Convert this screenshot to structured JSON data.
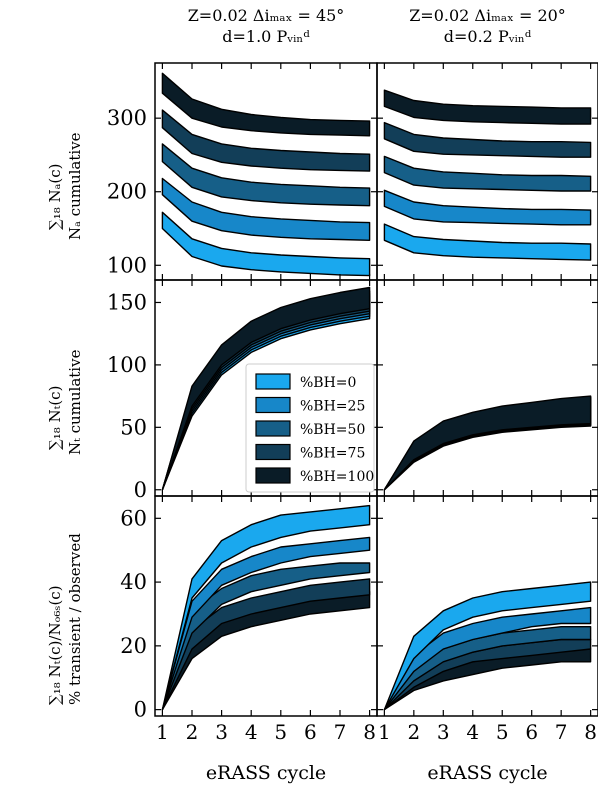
{
  "columns": [
    {
      "title_line1": "Z=0.02 Δiₘₐₓ = 45°",
      "title_line2": "d=1.0 Pᵥᵢₙᵈ"
    },
    {
      "title_line1": "Z=0.02 Δiₘₐₓ = 20°",
      "title_line2": "d=0.2 Pᵥᵢₙᵈ"
    }
  ],
  "xlabel": "eRASS cycle",
  "rows": [
    {
      "ylabel_sum": "∑₁₈ Nₐ(c)",
      "ylabel_text": "Nₐ cumulative"
    },
    {
      "ylabel_sum": "∑₁₈ Nₜ(c)",
      "ylabel_text": "Nₜ cumulative"
    },
    {
      "ylabel_sum": "∑₁₈ Nₜ(c)/Nₒ₆ₛ(c)",
      "ylabel_text": "% transient / observed"
    }
  ],
  "legend": [
    {
      "label": "%BH=0",
      "color": "#1aa8ee"
    },
    {
      "label": "%BH=25",
      "color": "#1787c9"
    },
    {
      "label": "%BH=50",
      "color": "#165f88"
    },
    {
      "label": "%BH=75",
      "color": "#123e58"
    },
    {
      "label": "%BH=100",
      "color": "#0a1c27"
    }
  ],
  "chart_data": [
    {
      "type": "area",
      "row": 0,
      "col": 0,
      "x": [
        1,
        2,
        3,
        4,
        5,
        6,
        7,
        8
      ],
      "ylim": [
        80,
        375
      ],
      "yticks": [
        100,
        200,
        300
      ],
      "series": [
        {
          "name": "%BH=0",
          "low": [
            150,
            112,
            99,
            94,
            91,
            89,
            87,
            86
          ],
          "high": [
            172,
            136,
            123,
            117,
            114,
            112,
            110,
            109
          ]
        },
        {
          "name": "%BH=25",
          "low": [
            196,
            160,
            147,
            141,
            138,
            136,
            135,
            134
          ],
          "high": [
            218,
            186,
            172,
            166,
            163,
            161,
            159,
            158
          ]
        },
        {
          "name": "%BH=50",
          "low": [
            241,
            206,
            193,
            188,
            185,
            183,
            182,
            181
          ],
          "high": [
            265,
            232,
            219,
            213,
            210,
            208,
            206,
            205
          ]
        },
        {
          "name": "%BH=75",
          "low": [
            287,
            252,
            240,
            235,
            232,
            230,
            229,
            228
          ],
          "high": [
            311,
            278,
            265,
            259,
            256,
            254,
            252,
            251
          ]
        },
        {
          "name": "%BH=100",
          "low": [
            334,
            300,
            288,
            283,
            280,
            278,
            277,
            276
          ],
          "high": [
            361,
            326,
            312,
            305,
            301,
            298,
            297,
            296
          ]
        }
      ]
    },
    {
      "type": "area",
      "row": 0,
      "col": 1,
      "x": [
        1,
        2,
        3,
        4,
        5,
        6,
        7,
        8
      ],
      "ylim": [
        80,
        375
      ],
      "yticks": [
        100,
        200,
        300
      ],
      "series": [
        {
          "name": "%BH=0",
          "low": [
            134,
            117,
            113,
            111,
            110,
            109,
            108,
            107
          ],
          "high": [
            156,
            139,
            135,
            133,
            131,
            130,
            130,
            129
          ]
        },
        {
          "name": "%BH=25",
          "low": [
            180,
            163,
            159,
            158,
            157,
            156,
            155,
            155
          ],
          "high": [
            202,
            186,
            181,
            179,
            177,
            176,
            176,
            175
          ]
        },
        {
          "name": "%BH=50",
          "low": [
            226,
            209,
            205,
            204,
            203,
            202,
            201,
            201
          ],
          "high": [
            248,
            232,
            227,
            225,
            223,
            222,
            222,
            221
          ]
        },
        {
          "name": "%BH=75",
          "low": [
            272,
            255,
            251,
            250,
            249,
            248,
            247,
            247
          ],
          "high": [
            294,
            278,
            273,
            271,
            269,
            268,
            268,
            267
          ]
        },
        {
          "name": "%BH=100",
          "low": [
            316,
            301,
            297,
            295,
            294,
            293,
            292,
            292
          ],
          "high": [
            338,
            324,
            319,
            317,
            316,
            315,
            314,
            314
          ]
        }
      ]
    },
    {
      "type": "area",
      "row": 1,
      "col": 0,
      "x": [
        1,
        2,
        3,
        4,
        5,
        6,
        7,
        8
      ],
      "ylim": [
        -5,
        168
      ],
      "yticks": [
        0,
        50,
        100,
        150
      ],
      "series": [
        {
          "name": "%BH=0",
          "low": [
            0,
            59,
            92,
            110,
            121,
            128,
            133,
            137
          ],
          "high": [
            0,
            75,
            107,
            126,
            137,
            144,
            149,
            153
          ]
        },
        {
          "name": "%BH=25",
          "low": [
            0,
            61,
            94,
            112,
            123,
            130,
            135,
            139
          ],
          "high": [
            0,
            77,
            109,
            128,
            139,
            146,
            151,
            155
          ]
        },
        {
          "name": "%BH=50",
          "low": [
            0,
            63,
            96,
            114,
            125,
            132,
            137,
            141
          ],
          "high": [
            0,
            79,
            111,
            130,
            141,
            148,
            153,
            157
          ]
        },
        {
          "name": "%BH=75",
          "low": [
            0,
            65,
            98,
            116,
            127,
            134,
            139,
            143
          ],
          "high": [
            0,
            81,
            113,
            132,
            143,
            150,
            155,
            159
          ]
        },
        {
          "name": "%BH=100",
          "low": [
            0,
            67,
            100,
            118,
            129,
            136,
            141,
            145
          ],
          "high": [
            0,
            83,
            116,
            135,
            146,
            153,
            158,
            162
          ]
        }
      ]
    },
    {
      "type": "area",
      "row": 1,
      "col": 1,
      "x": [
        1,
        2,
        3,
        4,
        5,
        6,
        7,
        8
      ],
      "ylim": [
        -5,
        168
      ],
      "yticks": [
        0,
        50,
        100,
        150
      ],
      "series": [
        {
          "name": "%BH=0",
          "low": [
            0,
            22,
            35,
            42,
            46,
            48,
            50,
            51
          ],
          "high": [
            0,
            37,
            53,
            60,
            65,
            68,
            71,
            73
          ]
        },
        {
          "name": "%BH=25",
          "low": [
            0,
            22.5,
            35.5,
            42.5,
            46.5,
            48.5,
            50.5,
            51.5
          ],
          "high": [
            0,
            37.5,
            53.5,
            60.5,
            65.5,
            68.5,
            71.5,
            73.5
          ]
        },
        {
          "name": "%BH=50",
          "low": [
            0,
            23,
            36,
            43,
            47,
            49,
            51,
            52
          ],
          "high": [
            0,
            38,
            54,
            61,
            66,
            69,
            72,
            74
          ]
        },
        {
          "name": "%BH=75",
          "low": [
            0,
            23.5,
            36.5,
            43.5,
            47.5,
            49.5,
            51.5,
            52.5
          ],
          "high": [
            0,
            38.5,
            54.5,
            61.5,
            66.5,
            69.5,
            72.5,
            74.5
          ]
        },
        {
          "name": "%BH=100",
          "low": [
            0,
            24,
            37,
            44,
            48,
            50,
            52,
            53
          ],
          "high": [
            0,
            39,
            55,
            62,
            67,
            70,
            73,
            75
          ]
        }
      ]
    },
    {
      "type": "area",
      "row": 2,
      "col": 0,
      "x": [
        1,
        2,
        3,
        4,
        5,
        6,
        7,
        8
      ],
      "ylim": [
        -2,
        67
      ],
      "yticks": [
        0,
        20,
        40,
        60
      ],
      "series": [
        {
          "name": "%BH=0",
          "low": [
            0,
            35,
            46,
            51,
            54,
            56,
            57,
            58
          ],
          "high": [
            0,
            41,
            53,
            58,
            61,
            62,
            63,
            64
          ]
        },
        {
          "name": "%BH=25",
          "low": [
            0,
            29,
            39,
            43,
            46,
            48,
            49,
            50
          ],
          "high": [
            0,
            34,
            44,
            48,
            51,
            52,
            53,
            54
          ]
        },
        {
          "name": "%BH=50",
          "low": [
            0,
            24,
            33,
            37,
            39,
            41,
            42,
            43
          ],
          "high": [
            0,
            31,
            38,
            42,
            44,
            45,
            46,
            46
          ]
        },
        {
          "name": "%BH=75",
          "low": [
            0,
            19,
            27,
            30,
            32,
            34,
            35,
            36
          ],
          "high": [
            0,
            25,
            32,
            35,
            37,
            39,
            40,
            41
          ]
        },
        {
          "name": "%BH=100",
          "low": [
            0,
            16,
            23,
            26,
            28,
            30,
            31,
            32
          ],
          "high": [
            0,
            21,
            28,
            31,
            33,
            35,
            36,
            37
          ]
        }
      ]
    },
    {
      "type": "area",
      "row": 2,
      "col": 1,
      "x": [
        1,
        2,
        3,
        4,
        5,
        6,
        7,
        8
      ],
      "ylim": [
        -2,
        67
      ],
      "yticks": [
        0,
        20,
        40,
        60
      ],
      "series": [
        {
          "name": "%BH=0",
          "low": [
            0,
            16,
            25,
            29,
            31,
            32,
            33,
            34
          ],
          "high": [
            0,
            23,
            31,
            35,
            37,
            38,
            39,
            40
          ]
        },
        {
          "name": "%BH=25",
          "low": [
            0,
            12,
            19,
            22,
            24,
            26,
            27,
            27
          ],
          "high": [
            0,
            17,
            24,
            27,
            29,
            30,
            31,
            32
          ]
        },
        {
          "name": "%BH=50",
          "low": [
            0,
            9,
            15,
            18,
            20,
            21,
            22,
            22
          ],
          "high": [
            0,
            13,
            19,
            22,
            24,
            25,
            26,
            26
          ]
        },
        {
          "name": "%BH=75",
          "low": [
            0,
            7,
            12,
            15,
            16,
            17,
            18,
            19
          ],
          "high": [
            0,
            11,
            16,
            18,
            20,
            21,
            22,
            22
          ]
        },
        {
          "name": "%BH=100",
          "low": [
            0,
            6,
            9,
            11,
            13,
            14,
            15,
            15
          ],
          "high": [
            0,
            9,
            13,
            15,
            17,
            18,
            19,
            19
          ]
        }
      ]
    }
  ]
}
